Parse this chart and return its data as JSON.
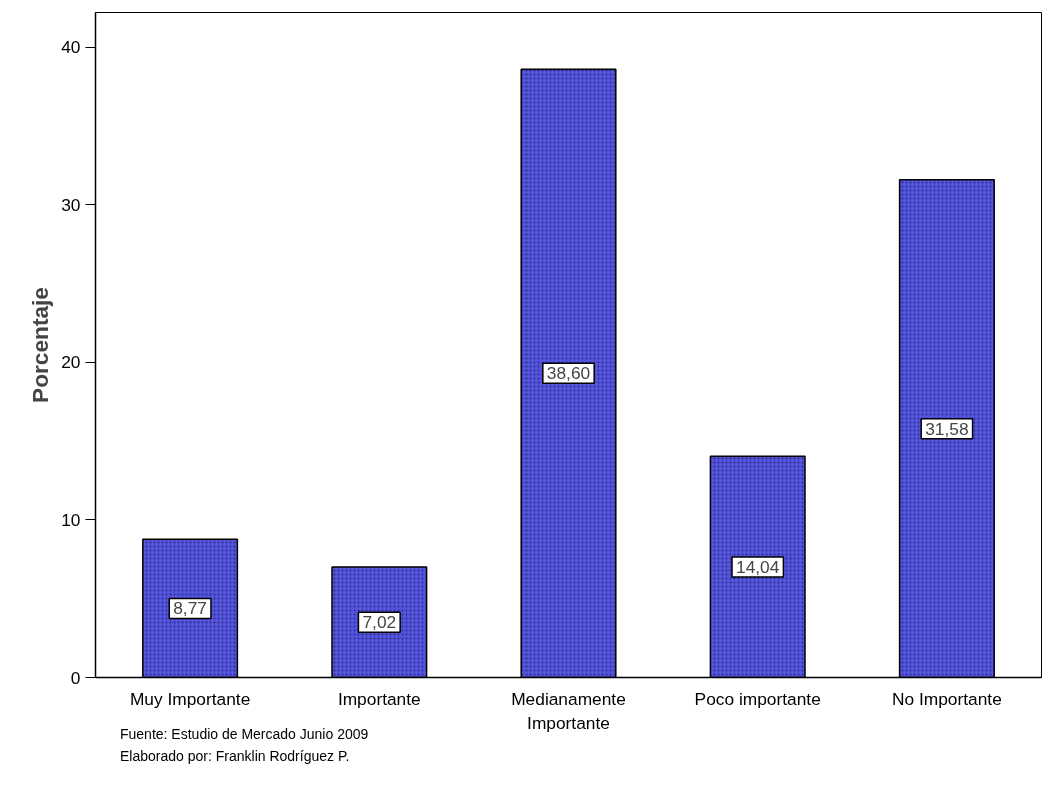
{
  "chart_data": {
    "type": "bar",
    "ylabel": "Porcentaje",
    "categories": [
      "Muy Importante",
      "Importante",
      "Medianamente Importante",
      "Poco importante",
      "No Importante"
    ],
    "values": [
      8.77,
      7.02,
      38.6,
      14.04,
      31.58
    ],
    "value_labels": [
      "8,77",
      "7,02",
      "38,60",
      "14,04",
      "31,58"
    ],
    "color": "#5454dc",
    "ylim": [
      0,
      42.2
    ],
    "yticks": [
      0,
      10,
      20,
      30,
      40
    ],
    "grid": false,
    "annotations": [
      "Fuente: Estudio de Mercado Junio 2009",
      "Elaborado por: Franklin Rodríguez P."
    ]
  }
}
